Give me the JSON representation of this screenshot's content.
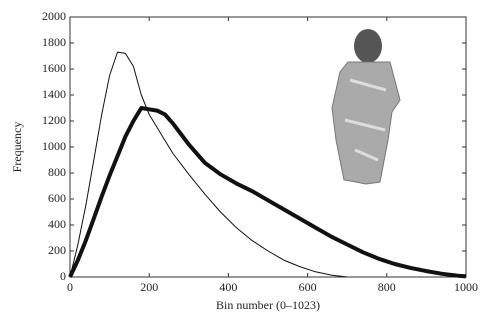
{
  "chart_data": {
    "type": "line",
    "x_label": "Bin number (0–1023)",
    "y_label": "Frequency",
    "x": [
      0,
      20,
      40,
      60,
      80,
      100,
      120,
      140,
      160,
      180,
      200,
      220,
      240,
      260,
      280,
      300,
      340,
      380,
      420,
      460,
      500,
      540,
      580,
      620,
      660,
      700,
      740,
      780,
      820,
      860,
      900,
      940,
      980,
      1000
    ],
    "series": [
      {
        "color": "#111111",
        "width": 1,
        "values": [
          0,
          250,
          550,
          900,
          1250,
          1550,
          1730,
          1720,
          1620,
          1400,
          1250,
          1150,
          1050,
          950,
          870,
          790,
          640,
          500,
          380,
          280,
          200,
          130,
          80,
          40,
          15,
          0,
          null,
          null,
          null,
          null,
          null,
          null,
          null,
          null
        ]
      },
      {
        "color": "#111111",
        "width": 4,
        "values": [
          0,
          130,
          280,
          450,
          620,
          780,
          930,
          1080,
          1200,
          1300,
          1290,
          1280,
          1250,
          1180,
          1100,
          1020,
          880,
          790,
          720,
          660,
          590,
          520,
          450,
          380,
          310,
          250,
          190,
          140,
          100,
          70,
          45,
          25,
          10,
          5
        ]
      }
    ],
    "xlim": [
      0,
      1000
    ],
    "ylim": [
      0,
      2000
    ],
    "xticks": [
      0,
      200,
      400,
      600,
      800,
      1000
    ],
    "yticks": [
      0,
      200,
      400,
      600,
      800,
      1000,
      1200,
      1400,
      1600,
      1800,
      2000
    ],
    "grid": false
  }
}
